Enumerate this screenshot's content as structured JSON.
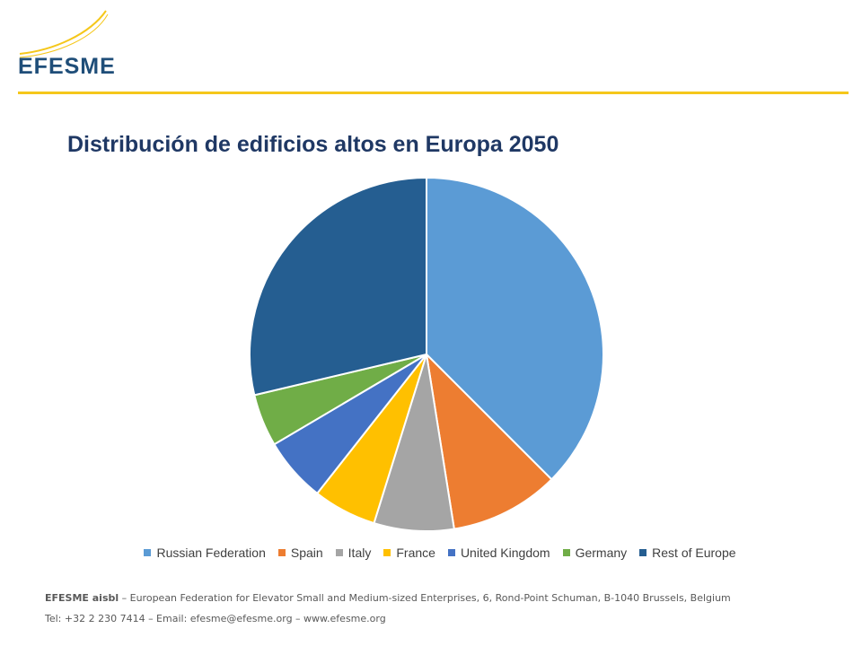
{
  "header": {
    "logo_text": "EFESME",
    "brand_color": "#1f4e79",
    "accent_color": "#f5c71a"
  },
  "slide": {
    "title": "Distribución de edificios altos en Europa 2050"
  },
  "chart_data": {
    "type": "pie",
    "title": "Distribución de edificios altos en Europa 2050",
    "legend_position": "bottom",
    "start_angle_deg": 0,
    "direction": "clockwise",
    "slices": [
      {
        "label": "Russian Federation",
        "value": 37.5,
        "color": "#5b9bd5"
      },
      {
        "label": "Spain",
        "value": 10.0,
        "color": "#ed7d31"
      },
      {
        "label": "Italy",
        "value": 7.3,
        "color": "#a5a5a5"
      },
      {
        "label": "France",
        "value": 5.8,
        "color": "#ffc000"
      },
      {
        "label": "United Kingdom",
        "value": 5.9,
        "color": "#4472c4"
      },
      {
        "label": "Germany",
        "value": 4.8,
        "color": "#70ad47"
      },
      {
        "label": "Rest of Europe",
        "value": 28.7,
        "color": "#255e91"
      }
    ]
  },
  "footer": {
    "org_name": "EFESME aisbl",
    "line1_rest": " – European Federation for Elevator Small and Medium-sized Enterprises, 6, Rond-Point Schuman, B-1040 Brussels, Belgium",
    "line2": "Tel: +32 2 230 7414 – Email: efesme@efesme.org – www.efesme.org"
  }
}
